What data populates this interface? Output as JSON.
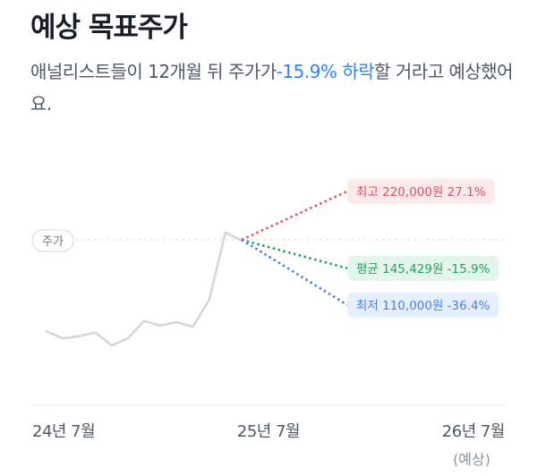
{
  "header": {
    "title": "예상 목표주가",
    "desc_before": "애널리스트들이 12개월 뒤 주가가",
    "desc_highlight": "-15.9% 하락",
    "desc_after": "할 거라고 예상했어요."
  },
  "colors": {
    "high": "#e0505f",
    "avg": "#1ea35b",
    "low": "#4a7fe0",
    "price_line": "#d1d6db",
    "highlight": "#3182f6"
  },
  "chart_data": {
    "type": "line",
    "x_ticks": [
      {
        "label": "24년 7월",
        "sub": ""
      },
      {
        "label": "25년 7월",
        "sub": ""
      },
      {
        "label": "26년 7월",
        "sub": "(예상)"
      }
    ],
    "current_price_label": "주가",
    "series": [
      {
        "values": [
          0.12,
          0.06,
          0.08,
          0.11,
          0.0,
          0.06,
          0.21,
          0.17,
          0.2,
          0.16,
          0.39,
          0.97,
          0.9
        ]
      }
    ],
    "forecasts": [
      {
        "key": "high",
        "label": "최고 220,000원 27.1%",
        "change_pct": 27.1
      },
      {
        "key": "avg",
        "label": "평균 145,429원 -15.9%",
        "change_pct": -15.9
      },
      {
        "key": "low",
        "label": "최저 110,000원 -36.4%",
        "change_pct": -36.4
      }
    ]
  }
}
